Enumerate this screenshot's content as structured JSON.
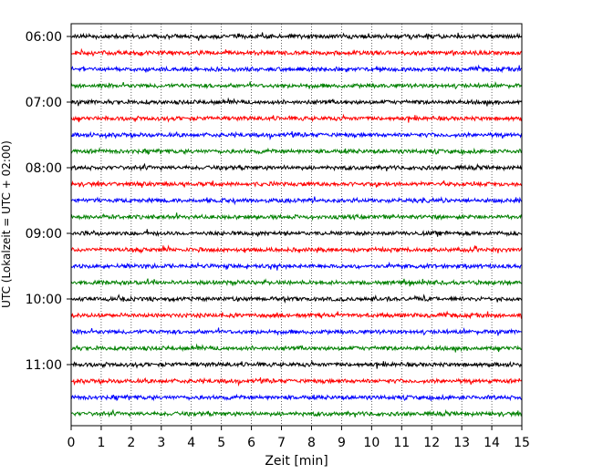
{
  "chart_data": {
    "type": "line",
    "title": "",
    "xlabel": "Zeit  [min]",
    "ylabel": "UTC (Lokalzeit = UTC + 02:00)",
    "xlim": [
      0,
      15
    ],
    "x_ticks": [
      0,
      1,
      2,
      3,
      4,
      5,
      6,
      7,
      8,
      9,
      10,
      11,
      12,
      13,
      14,
      15
    ],
    "y_tick_labels": [
      "06:00",
      "07:00",
      "08:00",
      "09:00",
      "10:00",
      "11:00"
    ],
    "traces_per_hour": 4,
    "trace_colors": [
      "#000000",
      "#ff0000",
      "#0000ff",
      "#008000"
    ],
    "grid": "vertical dotted",
    "traces": [
      {
        "start": "06:00"
      },
      {
        "start": "06:15"
      },
      {
        "start": "06:30"
      },
      {
        "start": "06:45"
      },
      {
        "start": "07:00"
      },
      {
        "start": "07:15"
      },
      {
        "start": "07:30"
      },
      {
        "start": "07:45"
      },
      {
        "start": "08:00"
      },
      {
        "start": "08:15"
      },
      {
        "start": "08:30"
      },
      {
        "start": "08:45"
      },
      {
        "start": "09:00"
      },
      {
        "start": "09:15"
      },
      {
        "start": "09:30"
      },
      {
        "start": "09:45"
      },
      {
        "start": "10:00"
      },
      {
        "start": "10:15"
      },
      {
        "start": "10:30"
      },
      {
        "start": "10:45"
      },
      {
        "start": "11:00"
      },
      {
        "start": "11:15"
      },
      {
        "start": "11:30"
      },
      {
        "start": "11:45"
      }
    ]
  }
}
